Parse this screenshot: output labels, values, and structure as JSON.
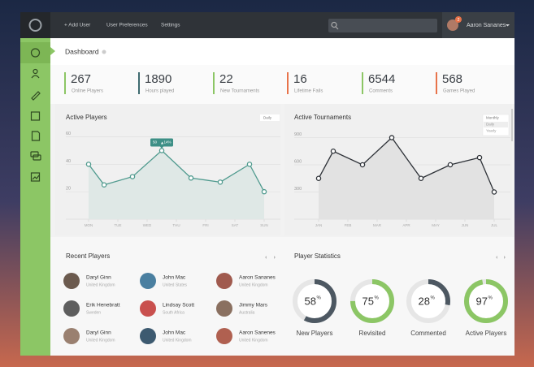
{
  "nav": {
    "items": [
      "+ Add User",
      "User Preferences",
      "Settings"
    ],
    "user": "Aaron Sananes",
    "badge": "2"
  },
  "dashboard": {
    "title": "Dashboard"
  },
  "stats": [
    {
      "value": 267,
      "label": "Online Players",
      "color": "#8cc665"
    },
    {
      "value": 1890,
      "label": "Hours played",
      "color": "#3f6b70"
    },
    {
      "value": 22,
      "label": "New Tournaments",
      "color": "#8cc665"
    },
    {
      "value": 16,
      "label": "Lifetime Fails",
      "color": "#e8734a"
    },
    {
      "value": 6544,
      "label": "Comments",
      "color": "#8cc665"
    },
    {
      "value": 568,
      "label": "Games Played",
      "color": "#e8734a"
    }
  ],
  "active_players": {
    "type": "line",
    "title": "Active Players",
    "dropdown": "Daily",
    "x": [
      0,
      0.53,
      1.5,
      2.5,
      3.5,
      4.5,
      5.5,
      6
    ],
    "values": [
      40,
      25,
      31,
      50,
      30,
      27,
      40,
      20
    ],
    "xlim": [
      0,
      6
    ],
    "xticks": [
      {
        "value": 0,
        "label": "MON"
      },
      {
        "value": 1,
        "label": "TUE"
      },
      {
        "value": 2,
        "label": "WED"
      },
      {
        "value": 3,
        "label": "THU"
      },
      {
        "value": 4,
        "label": "FRI"
      },
      {
        "value": 5,
        "label": "SAT"
      },
      {
        "value": 6,
        "label": "SUN"
      }
    ],
    "ylim": [
      0,
      68
    ],
    "yticks": [
      20,
      40,
      60
    ],
    "color": "#4f9a8e",
    "fill": "#dfe8e6",
    "annotation": {
      "value": "50",
      "change": "14%"
    }
  },
  "active_tournaments": {
    "type": "line",
    "title": "Active Tournaments",
    "dropdown": "Monthly",
    "options": [
      "Daily",
      "Yearly"
    ],
    "x": [
      0,
      0.5,
      1.5,
      2.5,
      3.5,
      4.5,
      5.5,
      6
    ],
    "values": [
      450,
      750,
      600,
      900,
      450,
      600,
      680,
      300
    ],
    "xlim": [
      0,
      6
    ],
    "xticks": [
      {
        "value": 0,
        "label": "JAN"
      },
      {
        "value": 1,
        "label": "FEB"
      },
      {
        "value": 2,
        "label": "MAR"
      },
      {
        "value": 3,
        "label": "APR"
      },
      {
        "value": 4,
        "label": "MAY"
      },
      {
        "value": 5,
        "label": "JUN"
      },
      {
        "value": 6,
        "label": "JUL"
      }
    ],
    "ylim": [
      0,
      1030
    ],
    "yticks": [
      300,
      600,
      900
    ],
    "color": "#2e3238",
    "fill": "#e2e2e2"
  },
  "recent_players": {
    "title": "Recent Players",
    "players": [
      {
        "name": "Daryl Ginn",
        "country": "United Kingdom"
      },
      {
        "name": "John Mac",
        "country": "United States"
      },
      {
        "name": "Aaron Sananes",
        "country": "United Kingdom"
      },
      {
        "name": "Erik Henebratt",
        "country": "Sweden"
      },
      {
        "name": "Lindsay Scott",
        "country": "South Africa"
      },
      {
        "name": "Jimmy Mars",
        "country": "Australia"
      },
      {
        "name": "Daryl Ginn",
        "country": "United Kingdom"
      },
      {
        "name": "John Mac",
        "country": "United Kingdom"
      },
      {
        "name": "Aaron Sanenes",
        "country": "United Kingdom"
      }
    ]
  },
  "player_statistics": {
    "title": "Player Statistics",
    "unit": "%",
    "items": [
      {
        "value": 58,
        "label": "New Players",
        "color": "#4d5862"
      },
      {
        "value": 75,
        "label": "Revisited",
        "color": "#8cc665"
      },
      {
        "value": 28,
        "label": "Commented",
        "color": "#4d5862"
      },
      {
        "value": 97,
        "label": "Active Players",
        "color": "#8cc665"
      }
    ]
  }
}
